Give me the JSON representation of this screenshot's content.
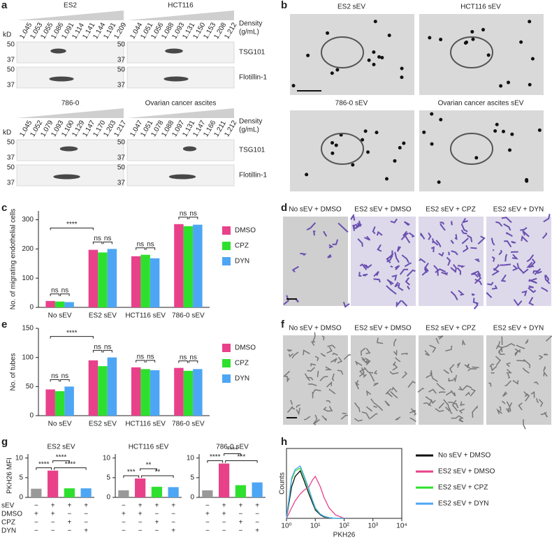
{
  "figure": {
    "panel_labels": [
      "a",
      "b",
      "c",
      "d",
      "e",
      "f",
      "g",
      "h"
    ],
    "blot": {
      "kd": "kD",
      "density_label": [
        "Density",
        "(g/mL)"
      ],
      "markers": [
        "TSG101",
        "Flotillin-1"
      ],
      "mw": [
        50,
        37
      ],
      "gels": [
        {
          "title": "ES2",
          "densities": [
            "1.045",
            "1.053",
            "1.055",
            "1.086",
            "1.091",
            "1.114",
            "1.141",
            "1.144",
            "1.191",
            "1.209"
          ]
        },
        {
          "title": "HCT116",
          "densities": [
            "1.044",
            "1.051",
            "1.056",
            "1.088",
            "1.093",
            "1.131",
            "1.150",
            "1.153",
            "1.208",
            "1.212"
          ]
        },
        {
          "title": "786-0",
          "densities": [
            "1.045",
            "1.052",
            "1.079",
            "1.093",
            "1.100",
            "1.129",
            "1.147",
            "1.170",
            "1.203",
            "1.217"
          ]
        },
        {
          "title": "Ovarian cancer ascites",
          "densities": [
            "1.047",
            "1.051",
            "1.078",
            "1.088",
            "1.097",
            "1.131",
            "1.147",
            "1.166",
            "1.211",
            "1.212"
          ]
        }
      ]
    },
    "em_titles": [
      "ES2 sEV",
      "HCT116 sEV",
      "786-0 sEV",
      "Ovarian cancer ascites sEV"
    ],
    "d_titles": [
      "No sEV + DMSO",
      "ES2 sEV + DMSO",
      "ES2 sEV + CPZ",
      "ES2 sEV + DYN"
    ],
    "f_titles": [
      "No sEV + DMSO",
      "ES2 sEV + DMSO",
      "ES2 sEV + CPZ",
      "ES2 sEV + DYN"
    ],
    "g_condition_labels": [
      "sEV",
      "DMSO",
      "CPZ",
      "DYN"
    ]
  },
  "chart_data": [
    {
      "type": "grouped_bar",
      "y_label": "No. of migrating endothelial cells",
      "categories": [
        "No sEV",
        "ES2 sEV",
        "HCT116 sEV",
        "786-0 sEV"
      ],
      "series": [
        {
          "name": "DMSO",
          "color": "#e8418a",
          "values": [
            22,
            197,
            175,
            285
          ]
        },
        {
          "name": "CPZ",
          "color": "#2ee02e",
          "values": [
            20,
            188,
            180,
            278
          ]
        },
        {
          "name": "DYN",
          "color": "#4da6f5",
          "values": [
            18,
            200,
            168,
            283
          ]
        }
      ],
      "ylim": [
        0,
        330
      ],
      "yticks": [
        0,
        100,
        200,
        300
      ],
      "annotations": [
        "****",
        "ns",
        "ns",
        "ns",
        "ns",
        "ns",
        "ns",
        "ns",
        "ns"
      ]
    },
    {
      "type": "grouped_bar",
      "y_label": "No. of tubes",
      "categories": [
        "No sEV",
        "ES2 sEV",
        "HCT116 sEV",
        "786-0 sEV"
      ],
      "series": [
        {
          "name": "DMSO",
          "color": "#e8418a",
          "values": [
            45,
            95,
            83,
            82
          ]
        },
        {
          "name": "CPZ",
          "color": "#2ee02e",
          "values": [
            42,
            85,
            80,
            77
          ]
        },
        {
          "name": "DYN",
          "color": "#4da6f5",
          "values": [
            50,
            100,
            78,
            80
          ]
        }
      ],
      "ylim": [
        0,
        150
      ],
      "yticks": [
        0,
        50,
        100,
        150
      ],
      "annotations": [
        "****",
        "ns",
        "ns",
        "ns",
        "ns",
        "ns",
        "ns",
        "ns",
        "ns"
      ]
    },
    {
      "type": "bar",
      "title": "ES2 sEV",
      "y_label": "PKH26 MFI",
      "values": [
        2.2,
        6.8,
        2.3,
        2.3
      ],
      "colors": [
        "#999999",
        "#e8418a",
        "#2ee02e",
        "#4da6f5"
      ],
      "ylim": [
        0,
        11
      ],
      "yticks": [
        0,
        5,
        10
      ],
      "annotations": [
        "****",
        "****",
        "****"
      ],
      "conditions": [
        [
          "−",
          "+",
          "+",
          "+"
        ],
        [
          "+",
          "+",
          "−",
          "−"
        ],
        [
          "−",
          "−",
          "+",
          "−"
        ],
        [
          "−",
          "−",
          "−",
          "+"
        ]
      ]
    },
    {
      "type": "bar",
      "title": "HCT116 sEV",
      "values": [
        1.8,
        4.8,
        2.7,
        2.6
      ],
      "colors": [
        "#999999",
        "#e8418a",
        "#2ee02e",
        "#4da6f5"
      ],
      "ylim": [
        0,
        11
      ],
      "yticks": [
        0,
        5,
        10
      ],
      "annotations": [
        "***",
        "**",
        "**"
      ],
      "conditions": [
        [
          "−",
          "+",
          "+",
          "+"
        ],
        [
          "+",
          "+",
          "−",
          "−"
        ],
        [
          "−",
          "−",
          "+",
          "−"
        ],
        [
          "−",
          "−",
          "−",
          "+"
        ]
      ]
    },
    {
      "type": "bar",
      "title": "786-0 sEV",
      "values": [
        1.8,
        8.6,
        3.1,
        3.8
      ],
      "colors": [
        "#999999",
        "#e8418a",
        "#2ee02e",
        "#4da6f5"
      ],
      "ylim": [
        0,
        11
      ],
      "yticks": [
        0,
        5,
        10
      ],
      "annotations": [
        "****",
        "****",
        "***"
      ],
      "conditions": [
        [
          "−",
          "+",
          "+",
          "+"
        ],
        [
          "+",
          "+",
          "−",
          "−"
        ],
        [
          "−",
          "−",
          "+",
          "−"
        ],
        [
          "−",
          "−",
          "−",
          "+"
        ]
      ]
    },
    {
      "type": "line",
      "x_label": "PKH26",
      "y_label": "Counts",
      "log_x": true,
      "x": [
        1,
        1.5,
        2,
        3,
        4,
        6,
        8,
        10,
        15,
        20,
        30,
        50,
        100
      ],
      "xlim": [
        1,
        10000
      ],
      "xticks": [
        {
          "value": 1,
          "label": "10⁰"
        },
        {
          "value": 10,
          "label": "10¹"
        },
        {
          "value": 100,
          "label": "10²"
        },
        {
          "value": 1000,
          "label": "10³"
        },
        {
          "value": 10000,
          "label": "10⁴"
        }
      ],
      "ylim": [
        0,
        100
      ],
      "series": [
        {
          "name": "No sEV + DMSO",
          "color": "#111111",
          "values": [
            0,
            45,
            60,
            68,
            55,
            35,
            22,
            12,
            5,
            2,
            1,
            0,
            0
          ]
        },
        {
          "name": "ES2 sEV + DMSO",
          "color": "#e8418a",
          "values": [
            0,
            15,
            25,
            35,
            40,
            45,
            55,
            60,
            45,
            30,
            15,
            5,
            0
          ]
        },
        {
          "name": "ES2 sEV + CPZ",
          "color": "#2ee02e",
          "values": [
            0,
            55,
            68,
            72,
            60,
            40,
            25,
            14,
            6,
            3,
            1,
            0,
            0
          ]
        },
        {
          "name": "ES2 sEV + DYN",
          "color": "#4da6f5",
          "values": [
            0,
            58,
            70,
            75,
            62,
            42,
            26,
            15,
            6,
            3,
            1,
            0,
            0
          ]
        }
      ]
    }
  ]
}
